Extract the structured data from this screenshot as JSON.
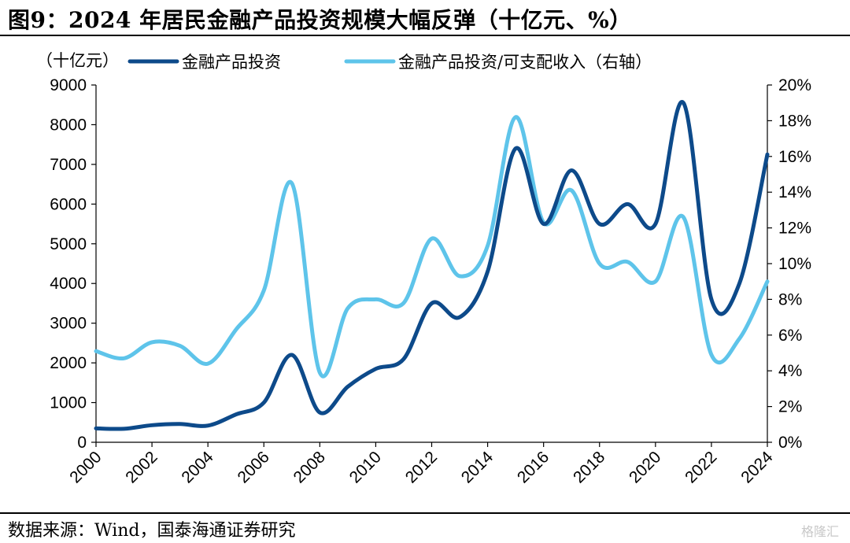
{
  "figure": {
    "title": "图9：2024 年居民金融产品投资规模大幅反弹（十亿元、%）",
    "source": "数据来源：Wind，国泰海通证券研究",
    "watermark": "格隆汇"
  },
  "chart_data": {
    "type": "line",
    "title": "2024 年居民金融产品投资规模大幅反弹（十亿元、%）",
    "y_left_unit": "（十亿元）",
    "x": [
      2000,
      2001,
      2002,
      2003,
      2004,
      2005,
      2006,
      2007,
      2008,
      2009,
      2010,
      2011,
      2012,
      2013,
      2014,
      2015,
      2016,
      2017,
      2018,
      2019,
      2020,
      2021,
      2022,
      2023,
      2024
    ],
    "x_ticks": [
      "2000",
      "2002",
      "2004",
      "2006",
      "2008",
      "2010",
      "2012",
      "2014",
      "2016",
      "2018",
      "2020",
      "2022",
      "2024"
    ],
    "xlim": [
      2000,
      2024
    ],
    "y_left": {
      "lim": [
        0,
        9000
      ],
      "ticks": [
        "0",
        "1000",
        "2000",
        "3000",
        "4000",
        "5000",
        "6000",
        "7000",
        "8000",
        "9000"
      ]
    },
    "y_right": {
      "lim": [
        0,
        20
      ],
      "ticks": [
        "0%",
        "2%",
        "4%",
        "6%",
        "8%",
        "10%",
        "12%",
        "14%",
        "16%",
        "18%",
        "20%"
      ]
    },
    "series": [
      {
        "name": "金融产品投资",
        "axis": "left",
        "color": "#0d4a8a",
        "values": [
          350,
          340,
          430,
          460,
          420,
          700,
          1000,
          2200,
          750,
          1400,
          1850,
          2100,
          3500,
          3150,
          4300,
          7400,
          5500,
          6850,
          5500,
          6000,
          5500,
          8550,
          3600,
          4000,
          7250
        ]
      },
      {
        "name": "金融产品投资/可支配收入（右轴）",
        "axis": "right",
        "color": "#5ec4ea",
        "values": [
          5.1,
          4.7,
          5.6,
          5.4,
          4.4,
          6.3,
          8.5,
          14.5,
          3.9,
          7.5,
          8.0,
          7.8,
          11.4,
          9.3,
          11.0,
          18.2,
          12.3,
          14.1,
          10.0,
          10.1,
          9.0,
          12.6,
          4.9,
          5.8,
          9.0
        ]
      }
    ],
    "legend_position": "top",
    "grid": false
  }
}
